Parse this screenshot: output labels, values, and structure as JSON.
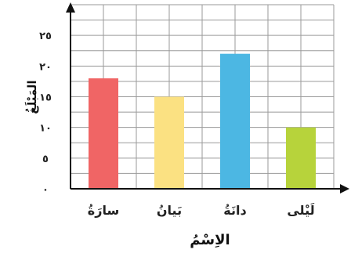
{
  "chart_data": {
    "type": "bar",
    "categories": [
      "سارَةُ",
      "بَيانُ",
      "دانَةُ",
      "لَيْلى"
    ],
    "values": [
      18,
      15,
      22,
      10
    ],
    "colors": [
      "#f06565",
      "#fbe182",
      "#4cb7e3",
      "#b7d33b"
    ],
    "ytick_labels": [
      "٠",
      "٥",
      "١٠",
      "١٥",
      "٢٠",
      "٢٥"
    ],
    "ytick_values": [
      0,
      5,
      10,
      15,
      20,
      25
    ],
    "ylim": [
      0,
      30
    ],
    "xlabel": "الاِسْمُ",
    "ylabel": "المَبْلَغُ",
    "grid": true,
    "legend": "none"
  }
}
